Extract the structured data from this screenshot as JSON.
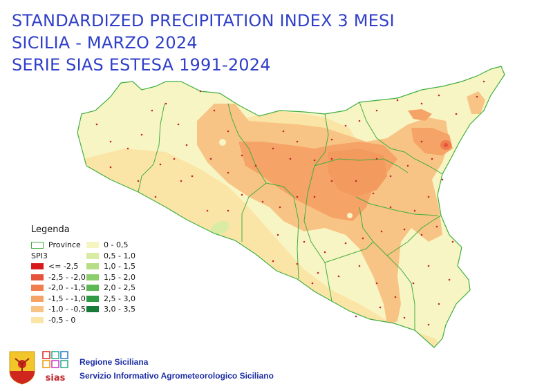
{
  "title": {
    "line1": "STANDARDIZED PRECIPITATION INDEX 3 MESI",
    "line2": "SICILIA - MARZO 2024",
    "line3": "SERIE SIAS ESTESA 1991-2024"
  },
  "legend": {
    "title": "Legenda",
    "province_label": "Province",
    "index_label": "SPI3",
    "classes_dry": [
      {
        "label": "<= -2,5",
        "color": "#d7191c"
      },
      {
        "label": "-2,5 - -2,0",
        "color": "#e5533a"
      },
      {
        "label": "-2,0 - -1,5",
        "color": "#f07d4d"
      },
      {
        "label": "-1,5 - -1,0",
        "color": "#f5a366"
      },
      {
        "label": "-1,0 - -0,5",
        "color": "#f8c485"
      },
      {
        "label": "-0,5 - 0",
        "color": "#fbe5a6"
      }
    ],
    "classes_wet": [
      {
        "label": "0 - 0,5",
        "color": "#f5f5c2"
      },
      {
        "label": "0,5 - 1,0",
        "color": "#d8eca4"
      },
      {
        "label": "1,0 - 1,5",
        "color": "#b5de86"
      },
      {
        "label": "1,5 - 2,0",
        "color": "#8ccd6c"
      },
      {
        "label": "2,0 - 2,5",
        "color": "#5cb855"
      },
      {
        "label": "2,5 - 3,0",
        "color": "#2f9b46"
      },
      {
        "label": "3,0 - 3,5",
        "color": "#167b38"
      }
    ]
  },
  "footer": {
    "org_line1": "Regione Siciliana",
    "org_line2": "Servizio Informativo Agrometeorologico Siciliano",
    "logo_text": "sias"
  },
  "colors": {
    "title": "#2f3fc9",
    "province_border": "#3fae3f",
    "station_dot": "#c0282d"
  }
}
